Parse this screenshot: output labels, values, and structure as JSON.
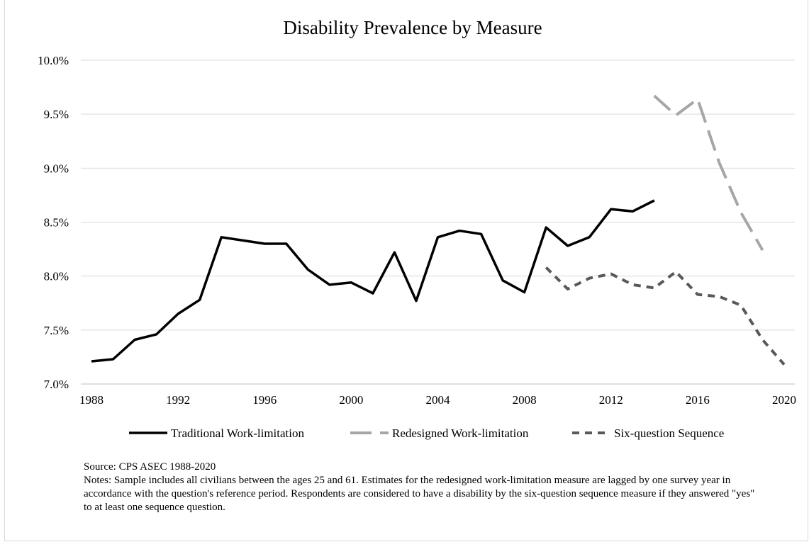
{
  "chart_data": {
    "type": "line",
    "title": "Disability Prevalence by Measure",
    "xlabel": "",
    "ylabel": "",
    "xlim": [
      1988,
      2020
    ],
    "ylim": [
      7.0,
      10.0
    ],
    "x_ticks": [
      1988,
      1992,
      1996,
      2000,
      2004,
      2008,
      2012,
      2016,
      2020
    ],
    "y_ticks": [
      {
        "value": 7.0,
        "label": "7.0%"
      },
      {
        "value": 7.5,
        "label": "7.5%"
      },
      {
        "value": 8.0,
        "label": "8.0%"
      },
      {
        "value": 8.5,
        "label": "8.5%"
      },
      {
        "value": 9.0,
        "label": "9.0%"
      },
      {
        "value": 9.5,
        "label": "9.5%"
      },
      {
        "value": 10.0,
        "label": "10.0%"
      }
    ],
    "grid": "horizontal",
    "legend_position": "bottom",
    "series": [
      {
        "name": "Traditional Work-limitation",
        "color": "#000000",
        "style": "solid",
        "points": [
          [
            1988,
            7.21
          ],
          [
            1989,
            7.23
          ],
          [
            1990,
            7.41
          ],
          [
            1991,
            7.46
          ],
          [
            1992,
            7.65
          ],
          [
            1993,
            7.78
          ],
          [
            1994,
            8.36
          ],
          [
            1995,
            8.33
          ],
          [
            1996,
            8.3
          ],
          [
            1997,
            8.3
          ],
          [
            1998,
            8.06
          ],
          [
            1999,
            7.92
          ],
          [
            2000,
            7.94
          ],
          [
            2001,
            7.84
          ],
          [
            2002,
            8.22
          ],
          [
            2003,
            7.77
          ],
          [
            2004,
            8.36
          ],
          [
            2005,
            8.42
          ],
          [
            2006,
            8.39
          ],
          [
            2007,
            7.96
          ],
          [
            2008,
            7.85
          ],
          [
            2009,
            8.45
          ],
          [
            2010,
            8.28
          ],
          [
            2011,
            8.36
          ],
          [
            2012,
            8.62
          ],
          [
            2013,
            8.6
          ],
          [
            2014,
            8.7
          ]
        ]
      },
      {
        "name": "Redesigned Work-limitation",
        "color": "#a6a6a6",
        "style": "long-dash",
        "points": [
          [
            2014,
            9.67
          ],
          [
            2015,
            9.49
          ],
          [
            2016,
            9.64
          ],
          [
            2017,
            9.05
          ],
          [
            2018,
            8.59
          ],
          [
            2019,
            8.24
          ]
        ]
      },
      {
        "name": "Six-question Sequence",
        "color": "#595959",
        "style": "short-dash",
        "points": [
          [
            2009,
            8.08
          ],
          [
            2010,
            7.88
          ],
          [
            2011,
            7.98
          ],
          [
            2012,
            8.02
          ],
          [
            2013,
            7.92
          ],
          [
            2014,
            7.89
          ],
          [
            2015,
            8.04
          ],
          [
            2016,
            7.83
          ],
          [
            2017,
            7.81
          ],
          [
            2018,
            7.73
          ],
          [
            2019,
            7.41
          ],
          [
            2020,
            7.18
          ]
        ]
      }
    ]
  },
  "notes": {
    "source": "Source: CPS ASEC 1988-2020",
    "text": "Notes: Sample includes all civilians between the ages 25 and 61. Estimates for the redesigned work-limitation measure are lagged by one survey year in accordance with the question's reference period. Respondents are considered to have a disability by the six-question sequence measure if they answered \"yes\" to at least one sequence question."
  }
}
